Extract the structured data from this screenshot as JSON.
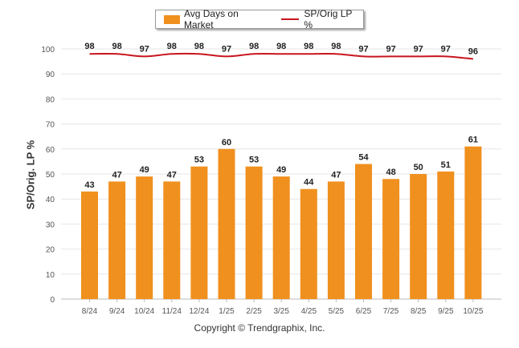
{
  "legend": {
    "bar_label": "Avg Days on Market",
    "line_label": "SP/Orig LP %"
  },
  "copyright": "Copyright © Trendgraphix, Inc.",
  "colors": {
    "bar": "#f0901e",
    "line": "#c8151e",
    "grid": "#e6e6e6",
    "tick_text": "#555555",
    "label_text": "#222222"
  },
  "chart_data": {
    "type": "bar",
    "categories": [
      "8/24",
      "9/24",
      "10/24",
      "11/24",
      "12/24",
      "1/25",
      "2/25",
      "3/25",
      "4/25",
      "5/25",
      "6/25",
      "7/25",
      "8/25",
      "9/25",
      "10/25"
    ],
    "series": [
      {
        "name": "Avg Days on Market",
        "type": "bar",
        "values": [
          43,
          47,
          49,
          47,
          53,
          60,
          53,
          49,
          44,
          47,
          54,
          48,
          50,
          51,
          61
        ]
      },
      {
        "name": "SP/Orig LP %",
        "type": "line",
        "values": [
          98,
          98,
          97,
          98,
          98,
          97,
          98,
          98,
          98,
          98,
          97,
          97,
          97,
          97,
          96
        ]
      }
    ],
    "ylabel": "SP/Orig. LP %",
    "ylim": [
      0,
      100
    ],
    "yticks": [
      0,
      10,
      20,
      30,
      40,
      50,
      60,
      70,
      80,
      90,
      100
    ],
    "grid": true,
    "legend_position": "top-center"
  }
}
